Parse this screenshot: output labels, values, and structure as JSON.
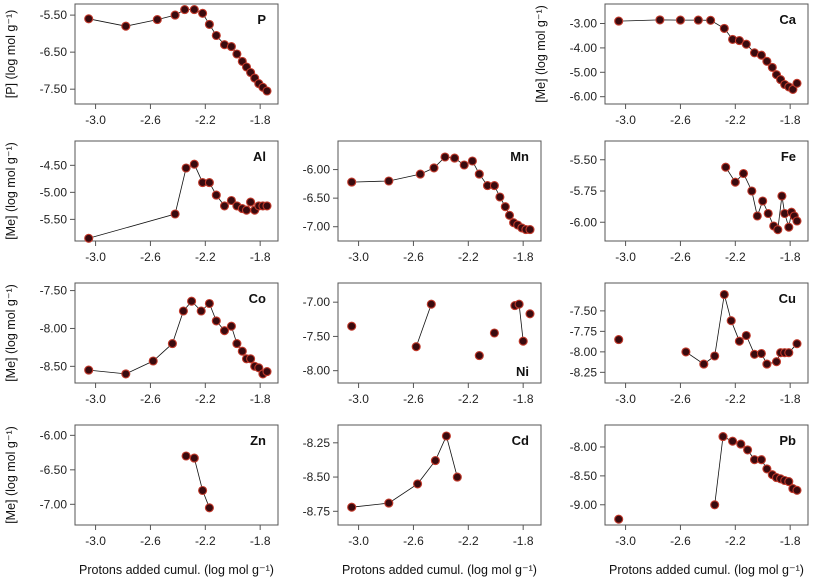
{
  "chart_data": [
    {
      "type": "line",
      "label": "P",
      "x": [
        -3.05,
        -2.78,
        -2.55,
        -2.42,
        -2.35,
        -2.28,
        -2.22,
        -2.17,
        -2.12,
        -2.06,
        -2.01,
        -1.97,
        -1.93,
        -1.9,
        -1.87,
        -1.84,
        -1.81,
        -1.78,
        -1.75
      ],
      "y": [
        -5.6,
        -5.8,
        -5.62,
        -5.5,
        -5.35,
        -5.35,
        -5.45,
        -5.75,
        -6.05,
        -6.3,
        -6.35,
        -6.55,
        -6.75,
        -6.9,
        -7.05,
        -7.2,
        -7.35,
        -7.45,
        -7.55
      ],
      "ylim": [
        -7.9,
        -5.2
      ],
      "yticks": [
        -5.5,
        -6.5,
        -7.5
      ],
      "ytick_labels": [
        "-5.50",
        "-6.50",
        "-7.50"
      ],
      "xlim": [
        -3.15,
        -1.67
      ],
      "xticks": [
        -3.0,
        -2.6,
        -2.2,
        -1.8
      ],
      "xtick_labels": [
        "-3.0",
        "-2.6",
        "-2.2",
        "-1.8"
      ],
      "ylabel": "[P] (log mol g⁻¹)",
      "xlabel": "",
      "segments": null
    },
    {
      "type": "line",
      "label": "Ca",
      "x": [
        -3.05,
        -2.75,
        -2.6,
        -2.47,
        -2.38,
        -2.28,
        -2.22,
        -2.17,
        -2.12,
        -2.06,
        -2.01,
        -1.97,
        -1.93,
        -1.9,
        -1.87,
        -1.84,
        -1.81,
        -1.78,
        -1.75
      ],
      "y": [
        -2.9,
        -2.85,
        -2.86,
        -2.86,
        -2.87,
        -3.2,
        -3.65,
        -3.7,
        -3.85,
        -4.2,
        -4.3,
        -4.55,
        -4.8,
        -5.1,
        -5.3,
        -5.5,
        -5.6,
        -5.7,
        -5.45
      ],
      "ylim": [
        -6.3,
        -2.2
      ],
      "yticks": [
        -3.0,
        -4.0,
        -5.0,
        -6.0
      ],
      "ytick_labels": [
        "-3.00",
        "-4.00",
        "-5.00",
        "-6.00"
      ],
      "xlim": [
        -3.15,
        -1.67
      ],
      "xticks": [
        -3.0,
        -2.6,
        -2.2,
        -1.8
      ],
      "xtick_labels": [
        "-3.0",
        "-2.6",
        "-2.2",
        "-1.8"
      ],
      "ylabel": "[Me] (log mol g⁻¹)",
      "xlabel": "",
      "segments": null
    },
    {
      "type": "line",
      "label": "Al",
      "x": [
        -3.05,
        -2.42,
        -2.34,
        -2.28,
        -2.22,
        -2.17,
        -2.12,
        -2.06,
        -2.01,
        -1.97,
        -1.93,
        -1.9,
        -1.87,
        -1.84,
        -1.81,
        -1.78,
        -1.75
      ],
      "y": [
        -5.85,
        -5.4,
        -4.55,
        -4.48,
        -4.82,
        -4.82,
        -5.05,
        -5.25,
        -5.15,
        -5.25,
        -5.3,
        -5.33,
        -5.18,
        -5.33,
        -5.25,
        -5.25,
        -5.25
      ],
      "ylim": [
        -5.9,
        -4.05
      ],
      "yticks": [
        -4.5,
        -5.0,
        -5.5
      ],
      "ytick_labels": [
        "-4.50",
        "-5.00",
        "-5.50"
      ],
      "xlim": [
        -3.15,
        -1.67
      ],
      "xticks": [
        -3.0,
        -2.6,
        -2.2,
        -1.8
      ],
      "xtick_labels": [
        "-3.0",
        "-2.6",
        "-2.2",
        "-1.8"
      ],
      "ylabel": "[Me] (log mol g⁻¹)",
      "xlabel": "",
      "segments": [
        [
          0,
          16
        ]
      ]
    },
    {
      "type": "line",
      "label": "Mn",
      "x": [
        -3.05,
        -2.78,
        -2.55,
        -2.45,
        -2.37,
        -2.3,
        -2.23,
        -2.17,
        -2.12,
        -2.06,
        -2.01,
        -1.97,
        -1.93,
        -1.9,
        -1.87,
        -1.84,
        -1.81,
        -1.78,
        -1.75
      ],
      "y": [
        -6.22,
        -6.2,
        -6.08,
        -5.97,
        -5.78,
        -5.8,
        -5.92,
        -5.85,
        -6.08,
        -6.28,
        -6.28,
        -6.48,
        -6.65,
        -6.8,
        -6.93,
        -6.97,
        -7.02,
        -7.05,
        -7.05
      ],
      "ylim": [
        -7.25,
        -5.5
      ],
      "yticks": [
        -6.0,
        -6.5,
        -7.0
      ],
      "ytick_labels": [
        "-6.00",
        "-6.50",
        "-7.00"
      ],
      "xlim": [
        -3.15,
        -1.67
      ],
      "xticks": [
        -3.0,
        -2.6,
        -2.2,
        -1.8
      ],
      "xtick_labels": [
        "-3.0",
        "-2.6",
        "-2.2",
        "-1.8"
      ],
      "ylabel": "",
      "xlabel": "",
      "segments": null
    },
    {
      "type": "line",
      "label": "Fe",
      "x": [
        -2.27,
        -2.2,
        -2.14,
        -2.08,
        -2.04,
        -2.0,
        -1.96,
        -1.92,
        -1.89,
        -1.86,
        -1.84,
        -1.81,
        -1.79,
        -1.77,
        -1.75
      ],
      "y": [
        -5.56,
        -5.68,
        -5.61,
        -5.75,
        -5.95,
        -5.83,
        -5.93,
        -6.03,
        -6.06,
        -5.79,
        -5.93,
        -6.04,
        -5.92,
        -5.95,
        -5.99
      ],
      "ylim": [
        -6.15,
        -5.35
      ],
      "yticks": [
        -5.5,
        -5.75,
        -6.0
      ],
      "ytick_labels": [
        "-5.50",
        "-5.75",
        "-6.00"
      ],
      "xlim": [
        -3.15,
        -1.67
      ],
      "xticks": [
        -3.0,
        -2.6,
        -2.2,
        -1.8
      ],
      "xtick_labels": [
        "-3.0",
        "-2.6",
        "-2.2",
        "-1.8"
      ],
      "ylabel": "",
      "xlabel": "",
      "segments": null
    },
    {
      "type": "line",
      "label": "Co",
      "x": [
        -3.05,
        -2.78,
        -2.58,
        -2.44,
        -2.36,
        -2.3,
        -2.23,
        -2.17,
        -2.12,
        -2.06,
        -2.01,
        -1.97,
        -1.93,
        -1.9,
        -1.87,
        -1.84,
        -1.81,
        -1.78,
        -1.75
      ],
      "y": [
        -8.55,
        -8.6,
        -8.43,
        -8.2,
        -7.77,
        -7.64,
        -7.77,
        -7.67,
        -7.9,
        -8.03,
        -7.97,
        -8.2,
        -8.3,
        -8.4,
        -8.4,
        -8.5,
        -8.52,
        -8.6,
        -8.57
      ],
      "ylim": [
        -8.72,
        -7.4
      ],
      "yticks": [
        -7.5,
        -8.0,
        -8.5
      ],
      "ytick_labels": [
        "-7.50",
        "-8.00",
        "-8.50"
      ],
      "xlim": [
        -3.15,
        -1.67
      ],
      "xticks": [
        -3.0,
        -2.6,
        -2.2,
        -1.8
      ],
      "xtick_labels": [
        "-3.0",
        "-2.6",
        "-2.2",
        "-1.8"
      ],
      "ylabel": "[Me] (log mol g⁻¹)",
      "xlabel": "",
      "segments": null
    },
    {
      "type": "line",
      "label": "Ni",
      "x": [
        -3.05,
        -2.58,
        -2.47,
        -2.12,
        -2.01,
        -1.86,
        -1.83,
        -1.8,
        -1.75
      ],
      "y": [
        -7.35,
        -7.65,
        -7.03,
        -7.78,
        -7.45,
        -7.05,
        -7.03,
        -7.57,
        -7.17
      ],
      "ylim": [
        -8.18,
        -6.72
      ],
      "yticks": [
        -7.0,
        -7.5,
        -8.0
      ],
      "ytick_labels": [
        "-7.00",
        "-7.50",
        "-8.00"
      ],
      "xlim": [
        -3.15,
        -1.67
      ],
      "xticks": [
        -3.0,
        -2.6,
        -2.2,
        -1.8
      ],
      "xtick_labels": [
        "-3.0",
        "-2.6",
        "-2.2",
        "-1.8"
      ],
      "ylabel": "",
      "xlabel": "",
      "segments": [
        [
          1,
          2
        ],
        [
          5,
          7
        ]
      ]
    },
    {
      "type": "line",
      "label": "Cu",
      "x": [
        -3.05,
        -2.56,
        -2.43,
        -2.35,
        -2.28,
        -2.23,
        -2.17,
        -2.12,
        -2.06,
        -2.01,
        -1.97,
        -1.9,
        -1.87,
        -1.84,
        -1.81,
        -1.75
      ],
      "y": [
        -7.85,
        -8.0,
        -8.15,
        -8.05,
        -7.3,
        -7.62,
        -7.87,
        -7.8,
        -8.03,
        -8.02,
        -8.15,
        -8.12,
        -8.01,
        -8.01,
        -8.01,
        -7.9
      ],
      "ylim": [
        -8.38,
        -7.16
      ],
      "yticks": [
        -7.5,
        -7.75,
        -8.0,
        -8.25
      ],
      "ytick_labels": [
        "-7.50",
        "-7.75",
        "-8.00",
        "-8.25"
      ],
      "xlim": [
        -3.15,
        -1.67
      ],
      "xticks": [
        -3.0,
        -2.6,
        -2.2,
        -1.8
      ],
      "xtick_labels": [
        "-3.0",
        "-2.6",
        "-2.2",
        "-1.8"
      ],
      "ylabel": "",
      "xlabel": "",
      "segments": [
        [
          1,
          15
        ]
      ]
    },
    {
      "type": "line",
      "label": "Zn",
      "x": [
        -2.34,
        -2.28,
        -2.22,
        -2.17
      ],
      "y": [
        -6.3,
        -6.33,
        -6.8,
        -7.05
      ],
      "ylim": [
        -7.3,
        -5.85
      ],
      "yticks": [
        -6.0,
        -6.5,
        -7.0
      ],
      "ytick_labels": [
        "-6.00",
        "-6.50",
        "-7.00"
      ],
      "xlim": [
        -3.15,
        -1.67
      ],
      "xticks": [
        -3.0,
        -2.6,
        -2.2,
        -1.8
      ],
      "xtick_labels": [
        "-3.0",
        "-2.6",
        "-2.2",
        "-1.8"
      ],
      "ylabel": "[Me] (log mol g⁻¹)",
      "xlabel": "Protons added cumul. (log mol g⁻¹)",
      "segments": null
    },
    {
      "type": "line",
      "label": "Cd",
      "x": [
        -3.05,
        -2.78,
        -2.57,
        -2.44,
        -2.36,
        -2.28
      ],
      "y": [
        -8.72,
        -8.69,
        -8.55,
        -8.38,
        -8.2,
        -8.5
      ],
      "ylim": [
        -8.85,
        -8.12
      ],
      "yticks": [
        -8.25,
        -8.5,
        -8.75
      ],
      "ytick_labels": [
        "-8.25",
        "-8.50",
        "-8.75"
      ],
      "xlim": [
        -3.15,
        -1.67
      ],
      "xticks": [
        -3.0,
        -2.6,
        -2.2,
        -1.8
      ],
      "xtick_labels": [
        "-3.0",
        "-2.6",
        "-2.2",
        "-1.8"
      ],
      "ylabel": "",
      "xlabel": "Protons added cumul. (log mol g⁻¹)",
      "segments": null
    },
    {
      "type": "line",
      "label": "Pb",
      "x": [
        -3.05,
        -2.35,
        -2.29,
        -2.22,
        -2.16,
        -2.11,
        -2.06,
        -2.01,
        -1.97,
        -1.93,
        -1.9,
        -1.87,
        -1.84,
        -1.81,
        -1.78,
        -1.75
      ],
      "y": [
        -9.25,
        -9.0,
        -7.82,
        -7.9,
        -7.95,
        -8.05,
        -8.22,
        -8.22,
        -8.38,
        -8.48,
        -8.53,
        -8.55,
        -8.58,
        -8.6,
        -8.72,
        -8.75
      ],
      "ylim": [
        -9.35,
        -7.62
      ],
      "yticks": [
        -8.0,
        -8.5,
        -9.0
      ],
      "ytick_labels": [
        "-8.00",
        "-8.50",
        "-9.00"
      ],
      "xlim": [
        -3.15,
        -1.67
      ],
      "xticks": [
        -3.0,
        -2.6,
        -2.2,
        -1.8
      ],
      "xtick_labels": [
        "-3.0",
        "-2.6",
        "-2.2",
        "-1.8"
      ],
      "ylabel": "",
      "xlabel": "Protons added cumul. (log mol g⁻¹)",
      "segments": [
        [
          1,
          15
        ]
      ]
    }
  ],
  "colors": {
    "marker_fill": "#3a0a0e",
    "marker_stroke": "#c0392b",
    "line": "#111111",
    "axis": "#555555"
  }
}
